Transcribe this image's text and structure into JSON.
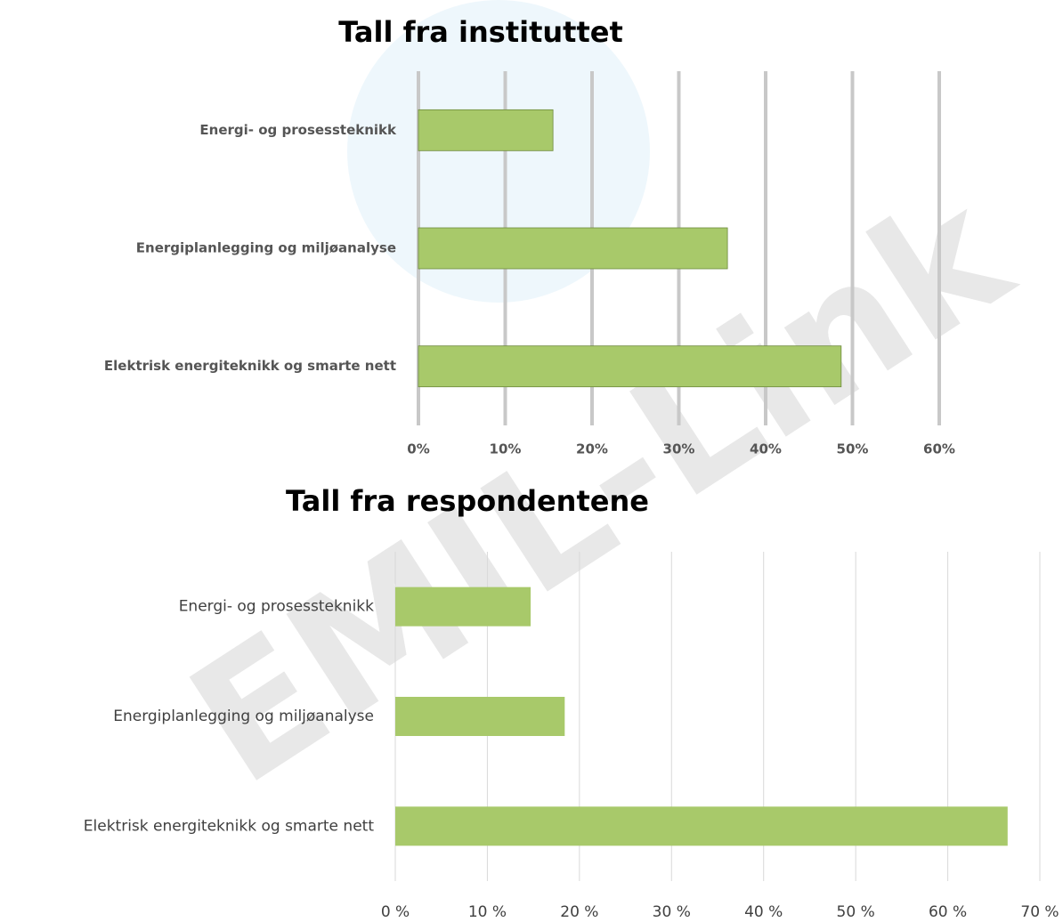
{
  "watermark": "EMIL-Link",
  "chart_data": [
    {
      "type": "bar",
      "orientation": "horizontal",
      "title": "Tall fra instituttet",
      "categories": [
        "Energi- og prosessteknikk",
        "Energiplanlegging og miljøanalyse",
        "Elektrisk energiteknikk og smarte nett"
      ],
      "values": [
        15.5,
        35.6,
        48.7
      ],
      "color": "#a8c96a",
      "xlim": [
        0,
        60
      ],
      "xticks": [
        {
          "value": 0,
          "label": "0%"
        },
        {
          "value": 10,
          "label": "10%"
        },
        {
          "value": 20,
          "label": "20%"
        },
        {
          "value": 30,
          "label": "30%"
        },
        {
          "value": 40,
          "label": "40%"
        },
        {
          "value": 50,
          "label": "50%"
        },
        {
          "value": 60,
          "label": "60%"
        }
      ],
      "grid": true
    },
    {
      "type": "bar",
      "orientation": "horizontal",
      "title": "Tall fra respondentene",
      "categories": [
        "Energi- og prosessteknikk",
        "Energiplanlegging og miljøanalyse",
        "Elektrisk energiteknikk og smarte nett"
      ],
      "values": [
        14.7,
        18.4,
        66.5
      ],
      "color": "#a8c96a",
      "xlim": [
        0,
        70
      ],
      "xticks": [
        {
          "value": 0,
          "label": "0 %"
        },
        {
          "value": 10,
          "label": "10 %"
        },
        {
          "value": 20,
          "label": "20 %"
        },
        {
          "value": 30,
          "label": "30 %"
        },
        {
          "value": 40,
          "label": "40 %"
        },
        {
          "value": 50,
          "label": "50 %"
        },
        {
          "value": 60,
          "label": "60 %"
        },
        {
          "value": 70,
          "label": "70 %"
        }
      ],
      "grid": true
    }
  ]
}
